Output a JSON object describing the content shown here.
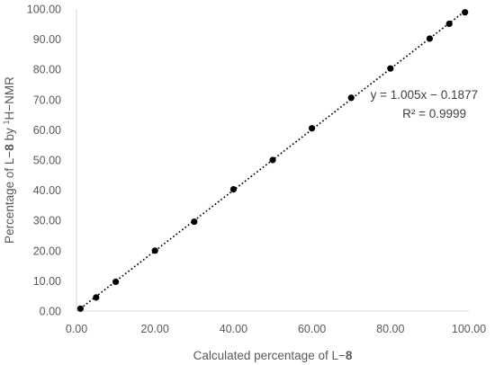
{
  "chart_data": {
    "type": "scatter",
    "title": "",
    "xlabel": {
      "prefix": "Calculated percentage of L−",
      "bold": "8"
    },
    "ylabel": {
      "prefix": "Percentage of L−",
      "bold": "8",
      "mid": " by ",
      "sup": "1",
      "suffix": "H−NMR"
    },
    "xlim": [
      0,
      100
    ],
    "ylim": [
      0,
      100
    ],
    "xticks": [
      "0.00",
      "20.00",
      "40.00",
      "60.00",
      "80.00",
      "100.00"
    ],
    "yticks": [
      "0.00",
      "10.00",
      "20.00",
      "30.00",
      "40.00",
      "50.00",
      "60.00",
      "70.00",
      "80.00",
      "90.00",
      "100.00"
    ],
    "grid": false,
    "series": [
      {
        "color": "#000000",
        "points": [
          {
            "x": 1,
            "y": 0.8
          },
          {
            "x": 5,
            "y": 4.5
          },
          {
            "x": 10,
            "y": 9.7
          },
          {
            "x": 20,
            "y": 20.0
          },
          {
            "x": 30,
            "y": 29.6
          },
          {
            "x": 40,
            "y": 40.3
          },
          {
            "x": 50,
            "y": 50.0
          },
          {
            "x": 60,
            "y": 60.5
          },
          {
            "x": 70,
            "y": 70.6
          },
          {
            "x": 80,
            "y": 80.3
          },
          {
            "x": 90,
            "y": 90.2
          },
          {
            "x": 95,
            "y": 95.1
          },
          {
            "x": 99,
            "y": 98.9
          }
        ]
      }
    ],
    "trendline": {
      "type": "linear",
      "slope": 1.005,
      "intercept": -0.1877,
      "style": "dotted",
      "color": "#000000"
    },
    "annotation": {
      "equation": "y = 1.005x − 0.1877",
      "r2": "R² = 0.9999"
    }
  }
}
